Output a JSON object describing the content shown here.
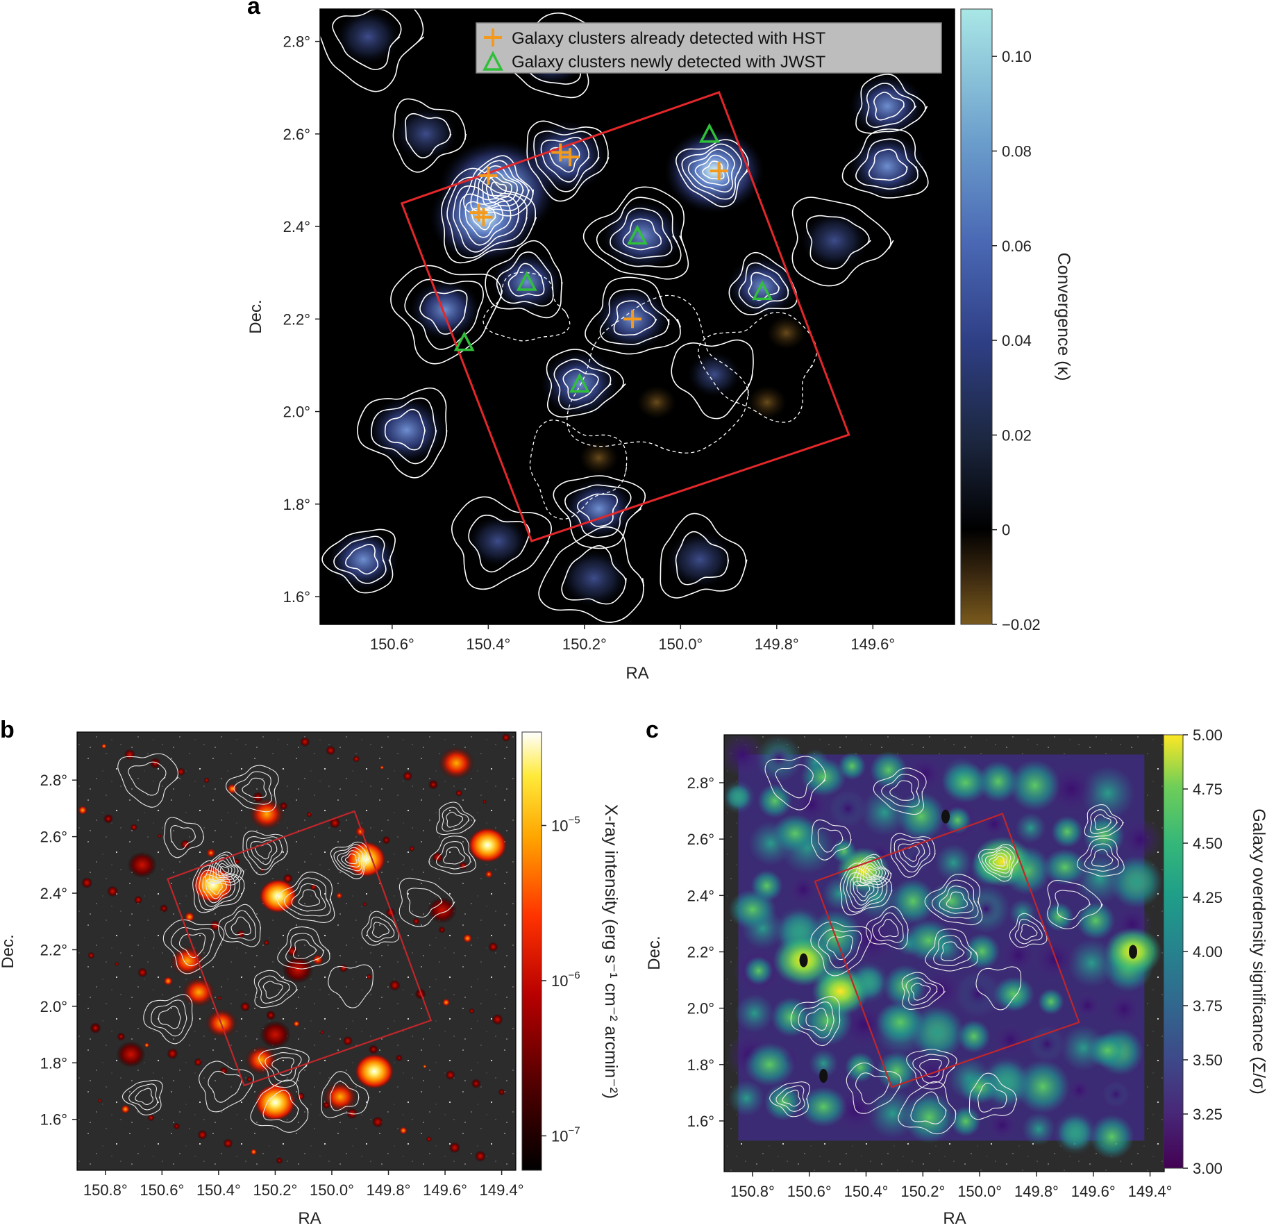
{
  "chart_data": [
    {
      "panel": "a",
      "type": "heatmap",
      "xlabel": "RA",
      "ylabel": "Dec.",
      "xlim": [
        150.75,
        149.43
      ],
      "ylim": [
        1.54,
        2.87
      ],
      "x_ticks": [
        150.6,
        150.4,
        150.2,
        150.0,
        149.8,
        149.6
      ],
      "x_tick_labels": [
        "150.6°",
        "150.4°",
        "150.2°",
        "150.0°",
        "149.8°",
        "149.6°"
      ],
      "y_ticks": [
        1.6,
        1.8,
        2.0,
        2.2,
        2.4,
        2.6,
        2.8
      ],
      "y_tick_labels": [
        "1.6°",
        "1.8°",
        "2.0°",
        "2.2°",
        "2.4°",
        "2.6°",
        "2.8°"
      ],
      "colorbar": {
        "label": "Convergence (κ)",
        "range": [
          -0.02,
          0.11
        ],
        "ticks": [
          -0.02,
          0,
          0.02,
          0.04,
          0.06,
          0.08,
          0.1
        ],
        "tick_labels": [
          "−0.02",
          "0",
          "0.02",
          "0.04",
          "0.06",
          "0.08",
          "0.10"
        ]
      },
      "legend": {
        "placement": "top-right",
        "entries": [
          {
            "label": "Galaxy clusters already detected with HST",
            "marker": "plus",
            "color": "#f39a1e"
          },
          {
            "label": "Galaxy clusters newly detected with JWST",
            "marker": "triangle",
            "color": "#2fbf3a"
          }
        ]
      },
      "survey_footprint": [
        [
          150.58,
          2.45
        ],
        [
          149.92,
          2.69
        ],
        [
          149.65,
          1.95
        ],
        [
          150.31,
          1.72
        ]
      ],
      "hst_clusters": [
        {
          "ra": 150.4,
          "dec": 2.51
        },
        {
          "ra": 150.41,
          "dec": 2.42
        },
        {
          "ra": 150.42,
          "dec": 2.43
        },
        {
          "ra": 150.25,
          "dec": 2.56
        },
        {
          "ra": 150.23,
          "dec": 2.55
        },
        {
          "ra": 149.92,
          "dec": 2.52
        },
        {
          "ra": 150.1,
          "dec": 2.2
        }
      ],
      "jwst_clusters": [
        {
          "ra": 149.94,
          "dec": 2.6
        },
        {
          "ra": 150.09,
          "dec": 2.38
        },
        {
          "ra": 150.32,
          "dec": 2.28
        },
        {
          "ra": 149.83,
          "dec": 2.26
        },
        {
          "ra": 150.45,
          "dec": 2.15
        },
        {
          "ra": 150.21,
          "dec": 2.06
        }
      ],
      "peaks": [
        {
          "ra": 150.38,
          "dec": 2.48,
          "kappa": 0.105
        },
        {
          "ra": 150.41,
          "dec": 2.42,
          "kappa": 0.09
        },
        {
          "ra": 150.24,
          "dec": 2.55,
          "kappa": 0.06
        },
        {
          "ra": 149.93,
          "dec": 2.52,
          "kappa": 0.08
        },
        {
          "ra": 150.08,
          "dec": 2.38,
          "kappa": 0.055
        },
        {
          "ra": 150.1,
          "dec": 2.2,
          "kappa": 0.045
        },
        {
          "ra": 150.21,
          "dec": 2.06,
          "kappa": 0.05
        },
        {
          "ra": 150.49,
          "dec": 2.22,
          "kappa": 0.04
        },
        {
          "ra": 150.57,
          "dec": 1.96,
          "kappa": 0.05
        },
        {
          "ra": 150.32,
          "dec": 2.28,
          "kappa": 0.04
        },
        {
          "ra": 149.83,
          "dec": 2.27,
          "kappa": 0.04
        },
        {
          "ra": 149.68,
          "dec": 2.37,
          "kappa": 0.035
        },
        {
          "ra": 150.17,
          "dec": 1.79,
          "kappa": 0.04
        },
        {
          "ra": 150.66,
          "dec": 1.68,
          "kappa": 0.04
        },
        {
          "ra": 150.18,
          "dec": 1.64,
          "kappa": 0.035
        },
        {
          "ra": 149.96,
          "dec": 1.68,
          "kappa": 0.035
        },
        {
          "ra": 150.53,
          "dec": 2.6,
          "kappa": 0.03
        },
        {
          "ra": 150.65,
          "dec": 2.81,
          "kappa": 0.03
        },
        {
          "ra": 150.27,
          "dec": 2.77,
          "kappa": 0.04
        },
        {
          "ra": 149.57,
          "dec": 2.53,
          "kappa": 0.05
        },
        {
          "ra": 149.57,
          "dec": 2.66,
          "kappa": 0.045
        },
        {
          "ra": 150.38,
          "dec": 1.72,
          "kappa": 0.025
        },
        {
          "ra": 149.93,
          "dec": 2.08,
          "kappa": 0.015
        }
      ]
    },
    {
      "panel": "b",
      "type": "heatmap",
      "xlabel": "RA",
      "ylabel": "Dec.",
      "xlim": [
        150.9,
        149.35
      ],
      "ylim": [
        1.42,
        2.97
      ],
      "x_ticks": [
        150.8,
        150.6,
        150.4,
        150.2,
        150.0,
        149.8,
        149.6,
        149.4
      ],
      "x_tick_labels": [
        "150.8°",
        "150.6°",
        "150.4°",
        "150.2°",
        "150.0°",
        "149.8°",
        "149.6°",
        "149.4°"
      ],
      "y_ticks": [
        1.6,
        1.8,
        2.0,
        2.2,
        2.4,
        2.6,
        2.8
      ],
      "y_tick_labels": [
        "1.6°",
        "1.8°",
        "2.0°",
        "2.2°",
        "2.4°",
        "2.6°",
        "2.8°"
      ],
      "colorbar": {
        "label": "X-ray intensity (erg s⁻¹ cm⁻² arcmin⁻²)",
        "scale": "log",
        "range": [
          6e-08,
          4e-05
        ],
        "ticks": [
          1e-07,
          1e-06,
          1e-05
        ],
        "tick_labels": [
          "10",
          "10",
          "10"
        ],
        "tick_exponents": [
          "−7",
          "−6",
          "−5"
        ]
      },
      "survey_footprint": [
        [
          150.58,
          2.45
        ],
        [
          149.92,
          2.69
        ],
        [
          149.65,
          1.95
        ],
        [
          150.31,
          1.72
        ]
      ],
      "peaks": [
        {
          "ra": 150.42,
          "dec": 2.43,
          "value": 3e-05
        },
        {
          "ra": 149.88,
          "dec": 2.52,
          "value": 2.5e-05
        },
        {
          "ra": 150.2,
          "dec": 1.66,
          "value": 3e-05
        },
        {
          "ra": 149.85,
          "dec": 1.77,
          "value": 2e-05
        },
        {
          "ra": 150.19,
          "dec": 2.39,
          "value": 1.5e-05
        },
        {
          "ra": 150.23,
          "dec": 2.68,
          "value": 8e-06
        },
        {
          "ra": 149.45,
          "dec": 2.57,
          "value": 2e-05
        },
        {
          "ra": 149.56,
          "dec": 2.86,
          "value": 1e-05
        },
        {
          "ra": 150.51,
          "dec": 2.16,
          "value": 6e-06
        },
        {
          "ra": 150.47,
          "dec": 2.05,
          "value": 5e-06
        },
        {
          "ra": 150.39,
          "dec": 1.94,
          "value": 4e-06
        },
        {
          "ra": 150.25,
          "dec": 1.81,
          "value": 4e-06
        },
        {
          "ra": 149.97,
          "dec": 1.68,
          "value": 6e-06
        },
        {
          "ra": 150.12,
          "dec": 2.13,
          "value": 3e-06
        },
        {
          "ra": 150.67,
          "dec": 2.5,
          "value": 2e-06
        },
        {
          "ra": 150.71,
          "dec": 1.83,
          "value": 2e-06
        },
        {
          "ra": 149.61,
          "dec": 2.34,
          "value": 2e-06
        },
        {
          "ra": 150.2,
          "dec": 1.9,
          "value": 3e-06
        }
      ]
    },
    {
      "panel": "c",
      "type": "heatmap",
      "xlabel": "RA",
      "ylabel": "Dec.",
      "xlim": [
        150.9,
        149.35
      ],
      "ylim": [
        1.42,
        2.97
      ],
      "x_ticks": [
        150.8,
        150.6,
        150.4,
        150.2,
        150.0,
        149.8,
        149.6,
        149.4
      ],
      "x_tick_labels": [
        "150.8°",
        "150.6°",
        "150.4°",
        "150.2°",
        "150.0°",
        "149.8°",
        "149.6°",
        "149.4°"
      ],
      "y_ticks": [
        1.6,
        1.8,
        2.0,
        2.2,
        2.4,
        2.6,
        2.8
      ],
      "y_tick_labels": [
        "1.6°",
        "1.8°",
        "2.0°",
        "2.2°",
        "2.4°",
        "2.6°",
        "2.8°"
      ],
      "colorbar": {
        "label": "Galaxy overdensity significance (Σ/σ)",
        "range": [
          3.0,
          5.0
        ],
        "ticks": [
          3.0,
          3.25,
          3.5,
          3.75,
          4.0,
          4.25,
          4.5,
          4.75,
          5.0
        ],
        "tick_labels": [
          "3.00",
          "3.25",
          "3.50",
          "3.75",
          "4.00",
          "4.25",
          "4.50",
          "4.75",
          "5.00"
        ]
      },
      "data_extent": {
        "ra": [
          150.85,
          149.42
        ],
        "dec": [
          1.53,
          2.9
        ]
      },
      "survey_footprint": [
        [
          150.58,
          2.45
        ],
        [
          149.92,
          2.69
        ],
        [
          149.65,
          1.95
        ],
        [
          150.31,
          1.72
        ]
      ],
      "peaks": [
        {
          "ra": 150.62,
          "dec": 2.17,
          "value": 5.0
        },
        {
          "ra": 150.49,
          "dec": 2.06,
          "value": 4.8
        },
        {
          "ra": 149.92,
          "dec": 2.52,
          "value": 4.9
        },
        {
          "ra": 149.46,
          "dec": 2.2,
          "value": 4.8
        },
        {
          "ra": 150.41,
          "dec": 2.49,
          "value": 4.6
        },
        {
          "ra": 150.18,
          "dec": 2.24,
          "value": 4.4
        },
        {
          "ra": 150.74,
          "dec": 1.8,
          "value": 4.5
        },
        {
          "ra": 150.8,
          "dec": 2.35,
          "value": 4.3
        },
        {
          "ra": 150.05,
          "dec": 2.8,
          "value": 4.3
        },
        {
          "ra": 150.28,
          "dec": 1.95,
          "value": 4.4
        },
        {
          "ra": 150.65,
          "dec": 2.62,
          "value": 4.2
        },
        {
          "ra": 149.7,
          "dec": 2.5,
          "value": 4.1
        },
        {
          "ra": 150.55,
          "dec": 1.65,
          "value": 4.3
        },
        {
          "ra": 149.88,
          "dec": 2.05,
          "value": 4.0
        },
        {
          "ra": 150.1,
          "dec": 2.38,
          "value": 4.2
        },
        {
          "ra": 150.55,
          "dec": 2.82,
          "value": 4.2
        },
        {
          "ra": 149.55,
          "dec": 1.85,
          "value": 4.0
        },
        {
          "ra": 150.0,
          "dec": 1.72,
          "value": 3.9
        }
      ]
    }
  ],
  "panels": {
    "a": {
      "letter": "a"
    },
    "b": {
      "letter": "b"
    },
    "c": {
      "letter": "c"
    }
  }
}
